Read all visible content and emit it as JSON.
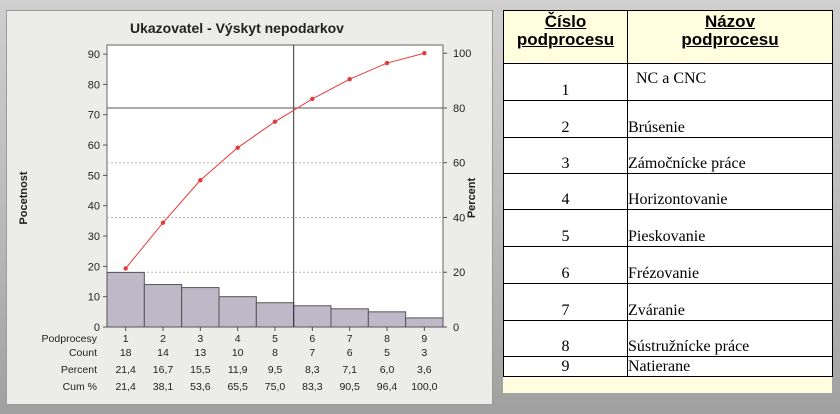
{
  "chart_data": {
    "type": "bar",
    "title": "Ukazovatel - Výskyt nepodarkov",
    "ylabel": "Pocetnost",
    "y2label": "Percent",
    "ylim": [
      0,
      93
    ],
    "y2lim": [
      0,
      103
    ],
    "yticks": [
      0,
      10,
      20,
      30,
      40,
      50,
      60,
      70,
      80,
      90
    ],
    "y2ticks": [
      0,
      20,
      40,
      60,
      80,
      100
    ],
    "categories": [
      "1",
      "2",
      "3",
      "4",
      "5",
      "6",
      "7",
      "8",
      "9"
    ],
    "values": [
      18,
      14,
      13,
      10,
      8,
      7,
      6,
      5,
      3
    ],
    "cumulative_percent": [
      21.4,
      38.1,
      53.6,
      65.5,
      75.0,
      83.3,
      90.5,
      96.4,
      100.0
    ],
    "vline_after_category": "5",
    "hline_value": 80,
    "bar_color": "#bfb8c8",
    "line_color": "#e8393a",
    "plot_bg": "#ffffff",
    "table": {
      "row_labels": [
        "Podprocesy",
        "Count",
        "Percent",
        "Cum %"
      ],
      "categories": [
        "1",
        "2",
        "3",
        "4",
        "5",
        "6",
        "7",
        "8",
        "9"
      ],
      "count": [
        "18",
        "14",
        "13",
        "10",
        "8",
        "7",
        "6",
        "5",
        "3"
      ],
      "percent": [
        "21,4",
        "16,7",
        "15,5",
        "11,9",
        "9,5",
        "8,3",
        "7,1",
        "6,0",
        "3,6"
      ],
      "cum": [
        "21,4",
        "38,1",
        "53,6",
        "65,5",
        "75,0",
        "83,3",
        "90,5",
        "96,4",
        "100,0"
      ]
    }
  },
  "process_table": {
    "header_number": [
      "Číslo",
      "podprocesu"
    ],
    "header_name": [
      "Názov",
      "podprocesu"
    ],
    "rows": [
      {
        "number": "1",
        "name": "NC a CNC"
      },
      {
        "number": "2",
        "name": "Brúsenie"
      },
      {
        "number": "3",
        "name": "Zámočnícke práce"
      },
      {
        "number": "4",
        "name": "Horizontovanie"
      },
      {
        "number": "5",
        "name": "Pieskovanie"
      },
      {
        "number": "6",
        "name": "Frézovanie"
      },
      {
        "number": "7",
        "name": "Zváranie"
      },
      {
        "number": "8",
        "name": "Sústružnícke práce"
      },
      {
        "number": "9",
        "name": "Natierane"
      }
    ]
  }
}
